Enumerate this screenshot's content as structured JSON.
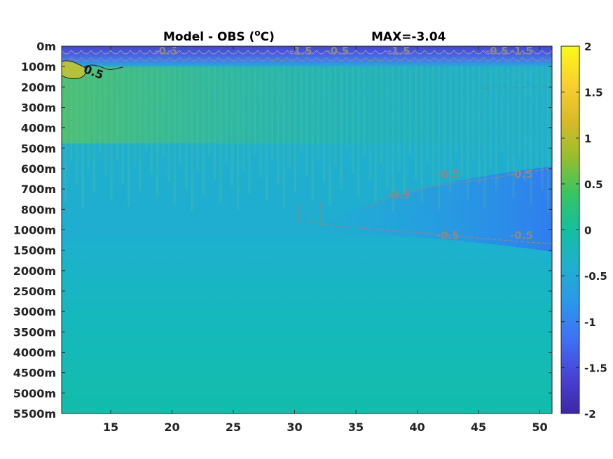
{
  "chart_data": {
    "type": "heatmap",
    "title": "Model - OBS (°C)",
    "title_main": "Model - OBS (",
    "title_sup": "o",
    "title_end": "C)",
    "max_label": "MAX=-3.04",
    "xlim": [
      11,
      51
    ],
    "x_ticks": [
      15,
      20,
      25,
      30,
      35,
      40,
      45,
      50
    ],
    "y_levels": [
      "0m",
      "100m",
      "200m",
      "300m",
      "400m",
      "500m",
      "600m",
      "700m",
      "800m",
      "1000m",
      "1500m",
      "2000m",
      "2500m",
      "3000m",
      "3500m",
      "4000m",
      "4500m",
      "5000m",
      "5500m"
    ],
    "colorbar": {
      "range": [
        -2,
        2
      ],
      "ticks": [
        "2",
        "1.5",
        "1",
        "0.5",
        "0",
        "-0.5",
        "-1",
        "-1.5",
        "-2"
      ]
    },
    "colormap": [
      "#3e26a8",
      "#4743d5",
      "#3f70f5",
      "#2c96ed",
      "#1fb0cf",
      "#13bf9f",
      "#38c462",
      "#99be2c",
      "#dbba29",
      "#fbd02f",
      "#f9fb15"
    ],
    "field_description_rows": [
      {
        "depth": "0m",
        "values": [
          -1.7,
          -1.6,
          -1.6,
          -1.6,
          -1.6,
          -1.6,
          -1.6,
          -1.6,
          -1.6
        ]
      },
      {
        "depth": "100m",
        "values": [
          0.6,
          0.0,
          0.1,
          0.0,
          -0.3,
          -0.2,
          -0.3,
          -0.4,
          -0.5
        ]
      },
      {
        "depth": "200m",
        "values": [
          0.2,
          0.2,
          0.2,
          0.2,
          0.1,
          0.0,
          -0.1,
          -0.3,
          -0.4
        ]
      },
      {
        "depth": "300m",
        "values": [
          0.0,
          0.1,
          0.1,
          0.0,
          0.0,
          -0.1,
          -0.2,
          -0.3,
          -0.3
        ]
      },
      {
        "depth": "700m",
        "values": [
          -0.3,
          -0.3,
          -0.3,
          -0.3,
          -0.4,
          -0.5,
          -0.6,
          -0.7,
          -0.8
        ]
      },
      {
        "depth": "800m",
        "values": [
          -0.3,
          -0.3,
          -0.3,
          -0.4,
          -0.6,
          -0.7,
          -0.8,
          -0.8,
          -0.8
        ]
      },
      {
        "depth": "1000m",
        "values": [
          -0.3,
          -0.3,
          -0.3,
          -0.3,
          -0.5,
          -0.5,
          -0.6,
          -0.6,
          -0.6
        ]
      },
      {
        "depth": "2000m",
        "values": [
          -0.2,
          -0.2,
          -0.2,
          -0.2,
          -0.2,
          -0.2,
          -0.2,
          -0.2,
          -0.2
        ]
      },
      {
        "depth": "3000m",
        "values": [
          -0.1,
          -0.1,
          -0.1,
          -0.1,
          -0.1,
          -0.1,
          -0.1,
          -0.1,
          -0.1
        ]
      },
      {
        "depth": "5500m",
        "values": [
          0.0,
          0.0,
          0.0,
          0.0,
          0.0,
          0.0,
          0.0,
          0.0,
          0.0
        ]
      }
    ],
    "contour_labels": [
      {
        "text": "0.5",
        "x": 13.5,
        "depth": "100m",
        "style": "dark"
      },
      {
        "text": "-0.5",
        "x": 19.5,
        "depth": "0m",
        "style": "grey"
      },
      {
        "text": "-1.5",
        "x": 30.5,
        "depth": "0m",
        "style": "grey"
      },
      {
        "text": "-0.5",
        "x": 33.5,
        "depth": "0m",
        "style": "grey"
      },
      {
        "text": "-1.5",
        "x": 38.5,
        "depth": "0m",
        "style": "grey"
      },
      {
        "text": "-1.5",
        "x": 48.5,
        "depth": "0m",
        "style": "grey"
      },
      {
        "text": "-0.5",
        "x": 46.5,
        "depth": "0m",
        "style": "grey"
      },
      {
        "text": "-0.5",
        "x": 38.5,
        "depth": "700m",
        "style": "grey"
      },
      {
        "text": "-0.5",
        "x": 42.5,
        "depth": "600m",
        "style": "grey"
      },
      {
        "text": "-0.5",
        "x": 48.5,
        "depth": "600m",
        "style": "grey"
      },
      {
        "text": "-0.5",
        "x": 42.5,
        "depth": "1000m",
        "style": "grey"
      },
      {
        "text": "-0.5",
        "x": 48.5,
        "depth": "1000m",
        "style": "grey"
      }
    ],
    "grid": false,
    "legend": "colorbar-right"
  }
}
